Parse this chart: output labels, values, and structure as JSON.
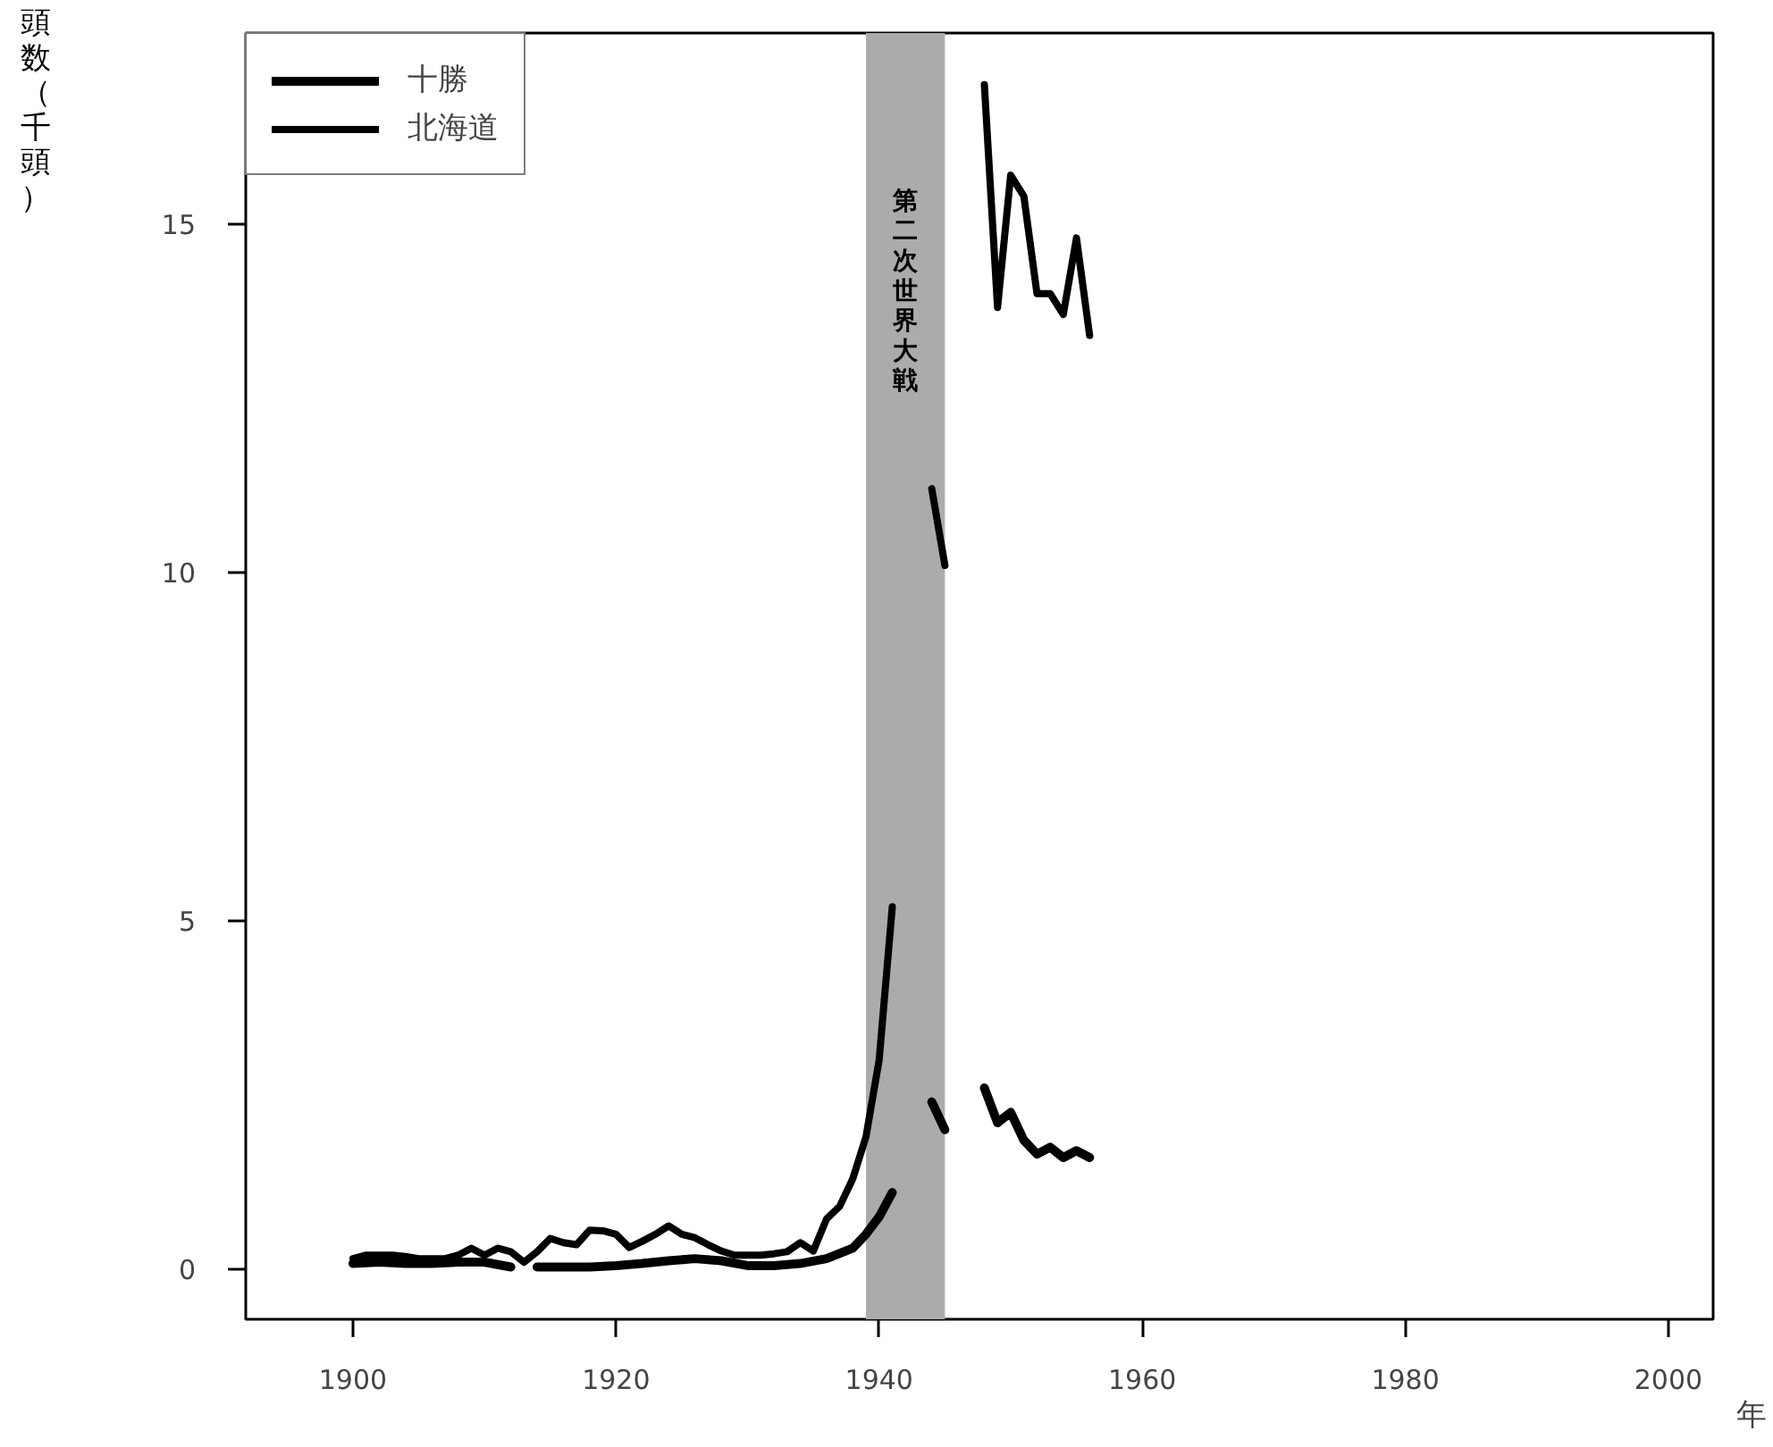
{
  "chart_data": {
    "type": "line",
    "xlabel": "年",
    "ylabel": "頭数（千頭）",
    "xlim": [
      1891.85,
      2003.4
    ],
    "ylim": [
      -0.72,
      17.74
    ],
    "xticks": [
      1900,
      1920,
      1940,
      1960,
      1980,
      2000
    ],
    "yticks": [
      0,
      5,
      10,
      15
    ],
    "grid": false,
    "legend": "top left",
    "line_style": "solid",
    "marker": "none",
    "bands": [
      {
        "axis": "x",
        "from": 1939,
        "to": 1945,
        "label": "第二次世界大戦",
        "color": "#ababab"
      }
    ],
    "series": [
      {
        "name": "十勝",
        "color": "#000000",
        "x": [
          1900,
          1902,
          1904,
          1906,
          1908,
          1910,
          1912,
          1913,
          1914,
          1916,
          1918,
          1920,
          1922,
          1924,
          1926,
          1928,
          1930,
          1932,
          1934,
          1936,
          1938,
          1939,
          1940,
          1941,
          1942,
          1944,
          1945,
          1946,
          1948,
          1949,
          1950,
          1951,
          1952,
          1953,
          1954,
          1955,
          1956
        ],
        "values": [
          0.08,
          0.1,
          0.08,
          0.08,
          0.1,
          0.1,
          0.03,
          null,
          0.03,
          0.03,
          0.03,
          0.05,
          0.08,
          0.12,
          0.15,
          0.12,
          0.05,
          0.05,
          0.08,
          0.15,
          0.3,
          0.5,
          0.75,
          1.1,
          null,
          2.4,
          2.0,
          null,
          2.6,
          2.1,
          2.25,
          1.85,
          1.65,
          1.75,
          1.6,
          1.7,
          1.6
        ]
      },
      {
        "name": "北海道",
        "color": "#000000",
        "x": [
          1900,
          1901,
          1902,
          1903,
          1904,
          1905,
          1906,
          1907,
          1908,
          1909,
          1910,
          1911,
          1912,
          1913,
          1914,
          1915,
          1916,
          1917,
          1918,
          1919,
          1920,
          1921,
          1922,
          1923,
          1924,
          1925,
          1926,
          1927,
          1928,
          1929,
          1930,
          1931,
          1932,
          1933,
          1934,
          1935,
          1936,
          1937,
          1938,
          1939,
          1940,
          1941,
          1942,
          1944,
          1945,
          1946,
          1948,
          1949,
          1950,
          1951,
          1952,
          1953,
          1954,
          1955,
          1956
        ],
        "values": [
          0.15,
          0.2,
          0.2,
          0.2,
          0.18,
          0.15,
          0.15,
          0.15,
          0.2,
          0.3,
          0.2,
          0.3,
          0.25,
          0.1,
          0.25,
          0.44,
          0.38,
          0.35,
          0.56,
          0.55,
          0.5,
          0.31,
          0.4,
          0.5,
          0.62,
          0.5,
          0.45,
          0.35,
          0.26,
          0.2,
          0.2,
          0.2,
          0.22,
          0.25,
          0.38,
          0.26,
          0.72,
          0.9,
          1.3,
          1.9,
          3.0,
          5.2,
          null,
          11.2,
          10.1,
          null,
          17.0,
          13.8,
          15.7,
          15.4,
          14.0,
          14.0,
          13.7,
          14.8,
          13.4
        ]
      }
    ]
  }
}
